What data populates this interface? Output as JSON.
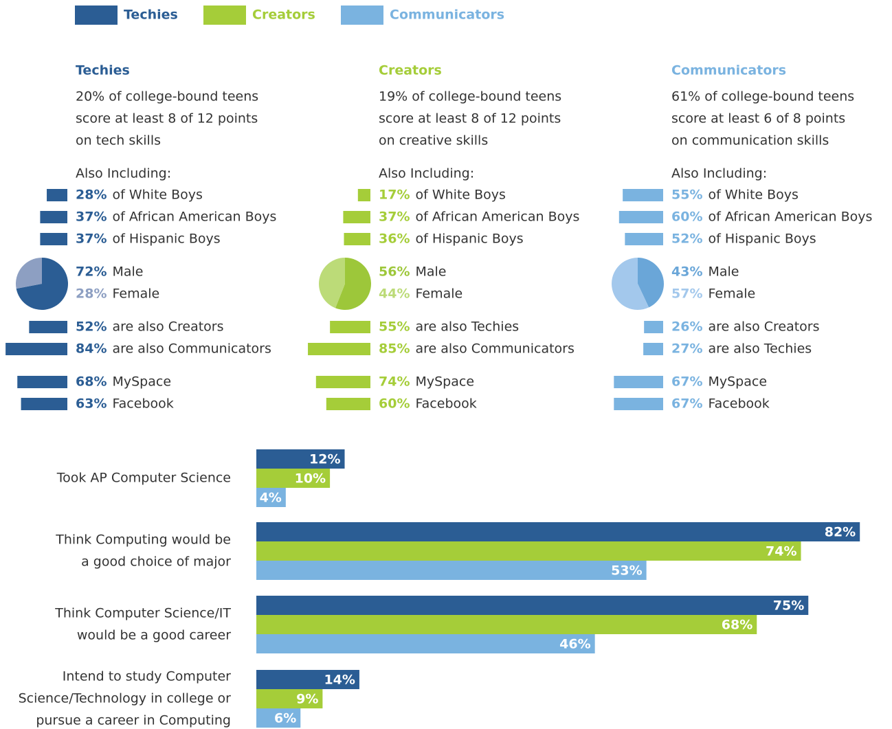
{
  "panels": [
    {
      "title": "Techies",
      "color": "#2b5d94",
      "description": [
        "20% of college-bound teens",
        "score at least 8 of 12 points",
        "on tech skills"
      ],
      "subheading": "Also Including:",
      "groups": [
        {
          "values": [
            28,
            37,
            37
          ],
          "value_labels": [
            "28%",
            "37%",
            "37%"
          ],
          "labels": [
            "of White Boys",
            "of African American Boys",
            "of Hispanic Boys"
          ]
        },
        {
          "values": [
            52,
            84
          ],
          "value_labels": [
            "52%",
            "84%"
          ],
          "labels": [
            "are also Creators",
            "are also Communicators"
          ]
        },
        {
          "values": [
            68,
            63
          ],
          "value_labels": [
            "68%",
            "63%"
          ],
          "labels": [
            "MySpace",
            "Facebook"
          ]
        }
      ],
      "pie": {
        "values": [
          72,
          28
        ],
        "value_labels": [
          "72%",
          "28%"
        ],
        "labels": [
          "Male",
          "Female"
        ],
        "colors": [
          "#2b5d94",
          "#8d9fc2"
        ]
      }
    },
    {
      "title": "Creators",
      "color": "#a5cd39",
      "description": [
        "19% of college-bound teens",
        "score at least 8 of 12 points",
        "on creative skills"
      ],
      "subheading": "Also Including:",
      "groups": [
        {
          "values": [
            17,
            37,
            36
          ],
          "value_labels": [
            "17%",
            "37%",
            "36%"
          ],
          "labels": [
            "of White Boys",
            "of African American Boys",
            "of Hispanic Boys"
          ]
        },
        {
          "values": [
            55,
            85
          ],
          "value_labels": [
            "55%",
            "85%"
          ],
          "labels": [
            "are also Techies",
            "are also Communicators"
          ]
        },
        {
          "values": [
            74,
            60
          ],
          "value_labels": [
            "74%",
            "60%"
          ],
          "labels": [
            "MySpace",
            "Facebook"
          ]
        }
      ],
      "pie": {
        "values": [
          56,
          44
        ],
        "value_labels": [
          "56%",
          "44%"
        ],
        "labels": [
          "Male",
          "Female"
        ],
        "colors": [
          "#9dc73a",
          "#bcdb78"
        ]
      }
    },
    {
      "title": "Communicators",
      "color": "#7ab3e0",
      "description": [
        "61% of college-bound teens",
        "score at least 6 of 8 points",
        "on communication skills"
      ],
      "subheading": "Also Including:",
      "groups": [
        {
          "values": [
            55,
            60,
            52
          ],
          "value_labels": [
            "55%",
            "60%",
            "52%"
          ],
          "labels": [
            "of White Boys",
            "of African American Boys",
            "of Hispanic Boys"
          ]
        },
        {
          "values": [
            26,
            27
          ],
          "value_labels": [
            "26%",
            "27%"
          ],
          "labels": [
            "are also Creators",
            "are also Techies"
          ]
        },
        {
          "values": [
            67,
            67
          ],
          "value_labels": [
            "67%",
            "67%"
          ],
          "labels": [
            "MySpace",
            "Facebook"
          ]
        }
      ],
      "pie": {
        "values": [
          43,
          57
        ],
        "value_labels": [
          "43%",
          "57%"
        ],
        "labels": [
          "Male",
          "Female"
        ],
        "colors": [
          "#6aa6d8",
          "#a3c8ec"
        ]
      }
    }
  ],
  "chart_data": {
    "type": "bar",
    "categories": [
      [
        "Took AP Computer Science"
      ],
      [
        "Think Computing would be",
        "a good choice of major"
      ],
      [
        "Think Computer Science/IT",
        "would be a good career"
      ],
      [
        "Intend to study Computer",
        "Science/Technology in college or",
        "pursue a career in Computing"
      ]
    ],
    "series": [
      {
        "name": "Techies",
        "color": "#2b5d94",
        "values": [
          12,
          82,
          75,
          14
        ],
        "value_labels": [
          "12%",
          "82%",
          "75%",
          "14%"
        ]
      },
      {
        "name": "Creators",
        "color": "#a5cd39",
        "values": [
          10,
          74,
          68,
          9
        ],
        "value_labels": [
          "10%",
          "74%",
          "68%",
          "9%"
        ]
      },
      {
        "name": "Communicators",
        "color": "#7ab3e0",
        "values": [
          4,
          53,
          46,
          6
        ],
        "value_labels": [
          "4%",
          "53%",
          "46%",
          "6%"
        ]
      }
    ]
  }
}
